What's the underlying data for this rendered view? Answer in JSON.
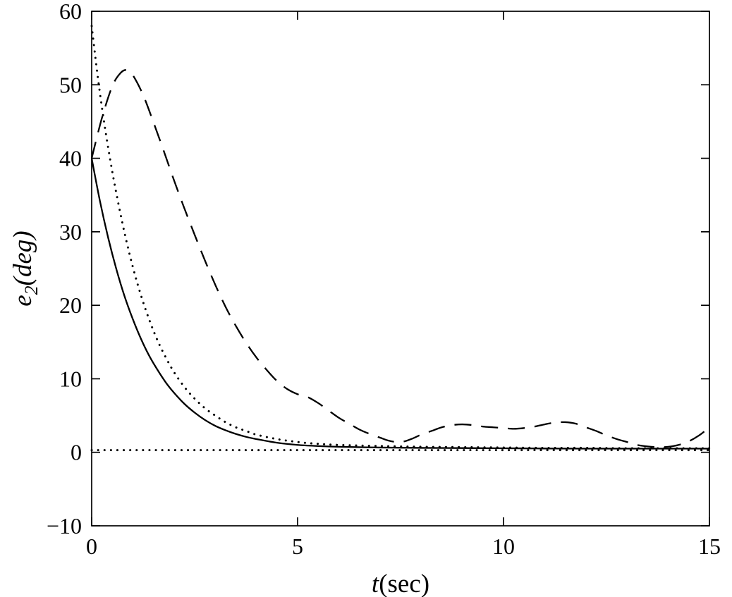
{
  "chart_data": {
    "type": "line",
    "title": "",
    "xlabel": "t(sec)",
    "ylabel": "e_2(deg)",
    "xlabel_parts": {
      "italic": "t",
      "rest": "(sec)"
    },
    "ylabel_parts": {
      "base": "e",
      "sub": "2",
      "rest": "(deg)"
    },
    "xlim": [
      0,
      15
    ],
    "ylim": [
      -10,
      60
    ],
    "xticks": [
      0,
      5,
      10,
      15
    ],
    "yticks": [
      -10,
      0,
      10,
      20,
      30,
      40,
      50,
      60
    ],
    "grid": false,
    "legend": "none",
    "axis_color": "#000000",
    "line_color": "#000000",
    "series": [
      {
        "name": "solid-response",
        "line_style": "solid",
        "color": "#000000",
        "points": [
          [
            0,
            40
          ],
          [
            0.2,
            34.2
          ],
          [
            0.4,
            29.2
          ],
          [
            0.6,
            24.9
          ],
          [
            0.8,
            21.2
          ],
          [
            1,
            18.1
          ],
          [
            1.2,
            15.4
          ],
          [
            1.4,
            13.1
          ],
          [
            1.6,
            11.2
          ],
          [
            1.8,
            9.5
          ],
          [
            2,
            8.1
          ],
          [
            2.25,
            6.6
          ],
          [
            2.5,
            5.4
          ],
          [
            2.75,
            4.4
          ],
          [
            3,
            3.6
          ],
          [
            3.25,
            3.0
          ],
          [
            3.5,
            2.5
          ],
          [
            3.75,
            2.1
          ],
          [
            4,
            1.8
          ],
          [
            4.5,
            1.3
          ],
          [
            5,
            1.0
          ],
          [
            5.5,
            0.85
          ],
          [
            6,
            0.75
          ],
          [
            7,
            0.65
          ],
          [
            8,
            0.6
          ],
          [
            9,
            0.58
          ],
          [
            10,
            0.55
          ],
          [
            11,
            0.52
          ],
          [
            12,
            0.5
          ],
          [
            13,
            0.5
          ],
          [
            14,
            0.5
          ],
          [
            15,
            0.5
          ]
        ]
      },
      {
        "name": "dotted-response",
        "line_style": "dotted",
        "color": "#000000",
        "points": [
          [
            0,
            58
          ],
          [
            0.15,
            51
          ],
          [
            0.3,
            45
          ],
          [
            0.45,
            39.8
          ],
          [
            0.6,
            35.2
          ],
          [
            0.8,
            29.8
          ],
          [
            1,
            25.2
          ],
          [
            1.2,
            21.3
          ],
          [
            1.4,
            18.0
          ],
          [
            1.6,
            15.2
          ],
          [
            1.8,
            12.9
          ],
          [
            2,
            10.9
          ],
          [
            2.25,
            8.9
          ],
          [
            2.5,
            7.3
          ],
          [
            2.75,
            6.0
          ],
          [
            3,
            5.0
          ],
          [
            3.25,
            4.1
          ],
          [
            3.5,
            3.4
          ],
          [
            3.75,
            2.9
          ],
          [
            4,
            2.4
          ],
          [
            4.5,
            1.8
          ],
          [
            5,
            1.4
          ],
          [
            5.5,
            1.15
          ],
          [
            6,
            1.0
          ],
          [
            7,
            0.85
          ],
          [
            8,
            0.75
          ],
          [
            9,
            0.7
          ],
          [
            10,
            0.65
          ],
          [
            11,
            0.6
          ],
          [
            12,
            0.6
          ],
          [
            13,
            0.55
          ],
          [
            14,
            0.55
          ],
          [
            15,
            0.55
          ]
        ]
      },
      {
        "name": "dashed-response",
        "line_style": "dashed",
        "color": "#000000",
        "points": [
          [
            0,
            40
          ],
          [
            0.25,
            45.5
          ],
          [
            0.5,
            49.8
          ],
          [
            0.7,
            51.6
          ],
          [
            0.85,
            52
          ],
          [
            1,
            51.3
          ],
          [
            1.25,
            48.6
          ],
          [
            1.5,
            44.9
          ],
          [
            1.75,
            41
          ],
          [
            2,
            37
          ],
          [
            2.25,
            33.2
          ],
          [
            2.5,
            29.6
          ],
          [
            2.75,
            26.1
          ],
          [
            3,
            22.8
          ],
          [
            3.25,
            19.8
          ],
          [
            3.5,
            17.2
          ],
          [
            3.75,
            14.9
          ],
          [
            4,
            12.9
          ],
          [
            4.25,
            11.2
          ],
          [
            4.5,
            9.7
          ],
          [
            4.75,
            8.6
          ],
          [
            5,
            7.9
          ],
          [
            5.25,
            7.5
          ],
          [
            5.5,
            6.7
          ],
          [
            5.75,
            5.7
          ],
          [
            6,
            4.7
          ],
          [
            6.25,
            3.9
          ],
          [
            6.5,
            3.1
          ],
          [
            6.75,
            2.5
          ],
          [
            7,
            2.0
          ],
          [
            7.2,
            1.6
          ],
          [
            7.4,
            1.4
          ],
          [
            7.6,
            1.5
          ],
          [
            7.8,
            1.9
          ],
          [
            8,
            2.4
          ],
          [
            8.25,
            2.9
          ],
          [
            8.5,
            3.4
          ],
          [
            8.75,
            3.7
          ],
          [
            9,
            3.8
          ],
          [
            9.25,
            3.7
          ],
          [
            9.5,
            3.5
          ],
          [
            9.75,
            3.4
          ],
          [
            10,
            3.3
          ],
          [
            10.25,
            3.2
          ],
          [
            10.5,
            3.3
          ],
          [
            10.75,
            3.5
          ],
          [
            11,
            3.8
          ],
          [
            11.25,
            4.05
          ],
          [
            11.5,
            4.1
          ],
          [
            11.75,
            3.9
          ],
          [
            12,
            3.4
          ],
          [
            12.25,
            2.9
          ],
          [
            12.5,
            2.3
          ],
          [
            12.75,
            1.8
          ],
          [
            13,
            1.4
          ],
          [
            13.25,
            1.0
          ],
          [
            13.5,
            0.8
          ],
          [
            13.75,
            0.7
          ],
          [
            14,
            0.75
          ],
          [
            14.25,
            1.0
          ],
          [
            14.5,
            1.5
          ],
          [
            14.75,
            2.3
          ],
          [
            15,
            3.4
          ]
        ]
      },
      {
        "name": "zero-reference",
        "line_style": "dotted",
        "color": "#000000",
        "points": [
          [
            0,
            0.3
          ],
          [
            15,
            0.3
          ]
        ]
      }
    ]
  }
}
